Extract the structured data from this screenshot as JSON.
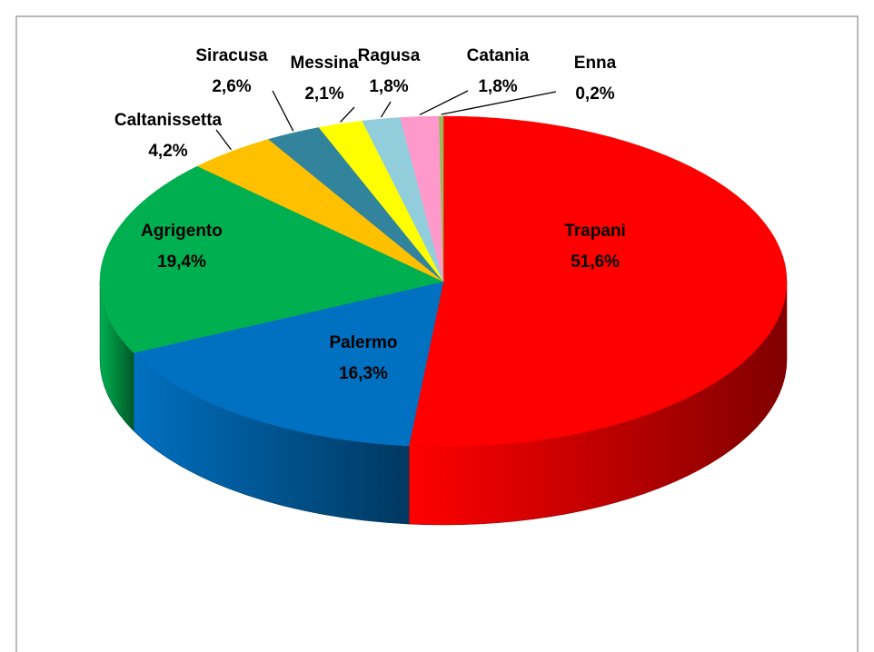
{
  "chart_data": {
    "type": "pie",
    "categories": [
      "Trapani",
      "Palermo",
      "Agrigento",
      "Caltanissetta",
      "Siracusa",
      "Messina",
      "Ragusa",
      "Catania",
      "Enna"
    ],
    "values": [
      51.6,
      16.3,
      19.4,
      4.2,
      2.6,
      2.1,
      1.8,
      1.8,
      0.2
    ],
    "value_labels": [
      "51,6%",
      "16,3%",
      "19,4%",
      "4,2%",
      "2,6%",
      "2,1%",
      "1,8%",
      "1,8%",
      "0,2%"
    ],
    "colors": [
      "#ff0000",
      "#0070c0",
      "#00b050",
      "#ffc000",
      "#31849b",
      "#ffff00",
      "#92cddc",
      "#ff99cc",
      "#9bbb59"
    ]
  }
}
